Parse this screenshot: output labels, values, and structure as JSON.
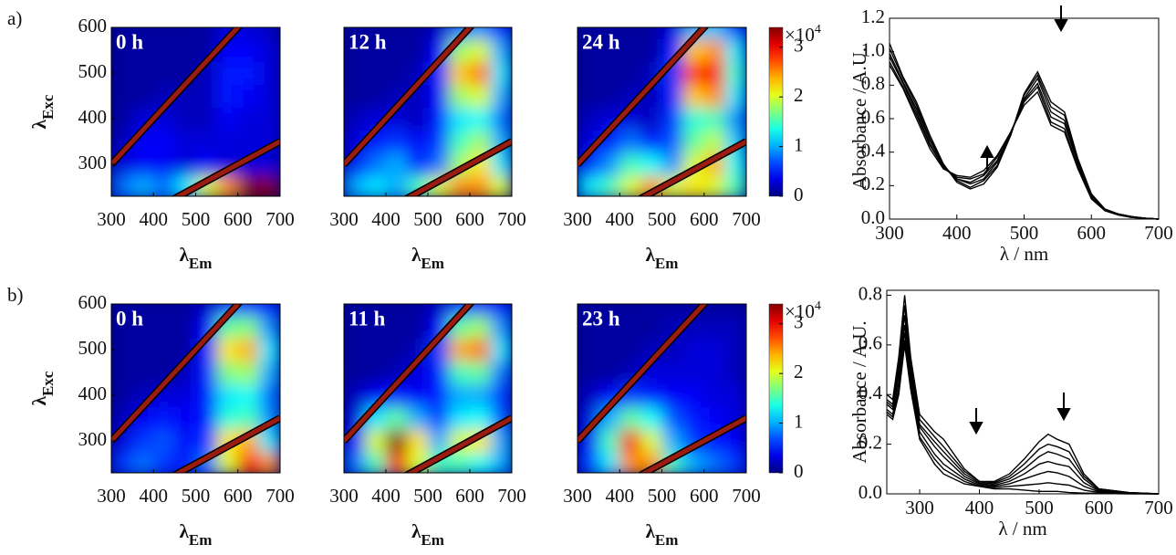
{
  "chart_data": [
    {
      "type": "contour",
      "panel_label": "a)",
      "time_label": "0 h",
      "xlabel": "λ",
      "xlabel_sub": "Em",
      "ylabel": "λ",
      "ylabel_sub": "Exc",
      "xlim": [
        300,
        700
      ],
      "ylim": [
        230,
        600
      ],
      "xticks": [
        300,
        400,
        500,
        600,
        700
      ],
      "yticks": [
        300,
        400,
        500,
        600
      ],
      "x": [
        325,
        375,
        425,
        475,
        525,
        575,
        625,
        675
      ],
      "y": [
        250,
        300,
        350,
        400,
        450,
        500,
        550,
        600
      ],
      "zlim": [
        0,
        3.4
      ],
      "z": [
        [
          0.8,
          1.0,
          0.8,
          1.2,
          2.0,
          2.5,
          3.4,
          3.4
        ],
        [
          0.3,
          0.4,
          0.4,
          0.3,
          0.4,
          0.3,
          0.3,
          0.3
        ],
        [
          0.2,
          0.4,
          0.4,
          0.3,
          0.3,
          0.3,
          0.3,
          0.3
        ],
        [
          0.1,
          0.3,
          0.3,
          0.2,
          0.2,
          0.4,
          0.3,
          0.3
        ],
        [
          0.1,
          0.1,
          0.2,
          0.2,
          0.2,
          0.5,
          0.4,
          0.3
        ],
        [
          0.1,
          0.1,
          0.1,
          0.1,
          0.2,
          0.5,
          0.5,
          0.3
        ],
        [
          0.1,
          0.1,
          0.1,
          0.1,
          0.1,
          0.4,
          0.4,
          0.3
        ],
        [
          0.1,
          0.1,
          0.1,
          0.1,
          0.1,
          0.3,
          0.3,
          0.2
        ]
      ]
    },
    {
      "type": "contour",
      "time_label": "12 h",
      "xlabel": "λ",
      "xlabel_sub": "Em",
      "xlim": [
        300,
        700
      ],
      "ylim": [
        230,
        600
      ],
      "xticks": [
        300,
        400,
        500,
        600,
        700
      ],
      "x": [
        325,
        375,
        425,
        475,
        525,
        575,
        625,
        675
      ],
      "y": [
        250,
        300,
        350,
        400,
        450,
        500,
        550,
        600
      ],
      "zlim": [
        0,
        3.4
      ],
      "z": [
        [
          1.0,
          1.2,
          1.0,
          1.5,
          2.0,
          2.5,
          2.5,
          2.0
        ],
        [
          0.4,
          0.8,
          1.0,
          0.5,
          0.8,
          1.8,
          2.2,
          1.2
        ],
        [
          0.3,
          0.5,
          0.6,
          0.4,
          0.6,
          1.5,
          1.8,
          1.0
        ],
        [
          0.2,
          0.3,
          0.3,
          0.2,
          0.5,
          1.2,
          1.3,
          0.8
        ],
        [
          0.1,
          0.1,
          0.2,
          0.2,
          0.4,
          1.8,
          2.0,
          1.0
        ],
        [
          0.1,
          0.1,
          0.1,
          0.2,
          0.5,
          2.3,
          2.6,
          1.2
        ],
        [
          0.1,
          0.1,
          0.1,
          0.1,
          0.4,
          1.8,
          2.0,
          1.0
        ],
        [
          0.1,
          0.1,
          0.1,
          0.1,
          0.2,
          0.8,
          0.9,
          0.5
        ]
      ]
    },
    {
      "type": "contour",
      "time_label": "24 h",
      "xlabel": "λ",
      "xlabel_sub": "Em",
      "xlim": [
        300,
        700
      ],
      "ylim": [
        230,
        600
      ],
      "xticks": [
        300,
        400,
        500,
        600,
        700
      ],
      "x": [
        325,
        375,
        425,
        475,
        525,
        575,
        625,
        675
      ],
      "y": [
        250,
        300,
        350,
        400,
        450,
        500,
        550,
        600
      ],
      "zlim": [
        0,
        3.4
      ],
      "z": [
        [
          1.2,
          1.5,
          2.0,
          2.5,
          2.0,
          2.2,
          2.0,
          1.5
        ],
        [
          0.5,
          0.9,
          1.5,
          1.3,
          0.9,
          2.0,
          2.4,
          1.3
        ],
        [
          0.3,
          0.5,
          0.8,
          0.5,
          0.7,
          1.6,
          1.9,
          1.1
        ],
        [
          0.2,
          0.3,
          0.3,
          0.2,
          0.6,
          1.4,
          1.5,
          0.9
        ],
        [
          0.1,
          0.1,
          0.2,
          0.2,
          0.5,
          2.3,
          2.5,
          1.2
        ],
        [
          0.1,
          0.1,
          0.1,
          0.2,
          0.6,
          2.8,
          3.0,
          1.4
        ],
        [
          0.1,
          0.1,
          0.1,
          0.1,
          0.5,
          2.3,
          2.5,
          1.2
        ],
        [
          0.1,
          0.1,
          0.1,
          0.1,
          0.3,
          1.0,
          1.1,
          0.6
        ]
      ],
      "colorbar_ticks": [
        0,
        1,
        2,
        3
      ],
      "colorbar_label": "×10",
      "colorbar_label_sup": "4"
    },
    {
      "type": "line",
      "xlabel": "λ / nm",
      "ylabel": "Absorbance / A.U.",
      "color": "#000000",
      "xlim": [
        300,
        700
      ],
      "ylim": [
        0,
        1.2
      ],
      "xticks": [
        300,
        400,
        500,
        600,
        700
      ],
      "yticks": [
        {
          "value": 0,
          "label": "0.0"
        },
        0.2,
        0.4,
        0.6,
        0.8,
        {
          "value": 1,
          "label": "1.0"
        },
        1.2
      ],
      "x": [
        300,
        320,
        340,
        360,
        380,
        400,
        420,
        440,
        460,
        480,
        500,
        520,
        540,
        560,
        580,
        600,
        620,
        640,
        660,
        680,
        700
      ],
      "series": [
        {
          "values": [
            1.05,
            0.85,
            0.7,
            0.5,
            0.33,
            0.22,
            0.18,
            0.21,
            0.31,
            0.5,
            0.75,
            0.88,
            0.7,
            0.64,
            0.36,
            0.15,
            0.06,
            0.03,
            0.015,
            0.005,
            0
          ]
        },
        {
          "values": [
            1.02,
            0.84,
            0.68,
            0.48,
            0.32,
            0.23,
            0.19,
            0.23,
            0.32,
            0.5,
            0.74,
            0.86,
            0.67,
            0.62,
            0.35,
            0.14,
            0.06,
            0.03,
            0.015,
            0.005,
            0
          ]
        },
        {
          "values": [
            0.99,
            0.82,
            0.66,
            0.47,
            0.32,
            0.24,
            0.21,
            0.24,
            0.34,
            0.51,
            0.72,
            0.84,
            0.64,
            0.59,
            0.34,
            0.14,
            0.06,
            0.03,
            0.015,
            0.005,
            0
          ]
        },
        {
          "values": [
            0.97,
            0.81,
            0.64,
            0.45,
            0.31,
            0.24,
            0.22,
            0.26,
            0.35,
            0.51,
            0.71,
            0.81,
            0.61,
            0.57,
            0.33,
            0.13,
            0.05,
            0.025,
            0.01,
            0.005,
            0
          ]
        },
        {
          "values": [
            0.94,
            0.79,
            0.62,
            0.44,
            0.31,
            0.25,
            0.24,
            0.27,
            0.37,
            0.52,
            0.7,
            0.79,
            0.58,
            0.54,
            0.31,
            0.13,
            0.05,
            0.025,
            0.01,
            0.005,
            0
          ]
        },
        {
          "values": [
            0.92,
            0.78,
            0.6,
            0.42,
            0.3,
            0.26,
            0.25,
            0.29,
            0.38,
            0.52,
            0.68,
            0.76,
            0.56,
            0.52,
            0.3,
            0.12,
            0.05,
            0.025,
            0.01,
            0.005,
            0
          ]
        }
      ]
    },
    {
      "type": "contour",
      "panel_label": "b)",
      "time_label": "0 h",
      "xlabel": "λ",
      "xlabel_sub": "Em",
      "ylabel": "λ",
      "ylabel_sub": "Exc",
      "xlim": [
        300,
        700
      ],
      "ylim": [
        230,
        600
      ],
      "xticks": [
        300,
        400,
        500,
        600,
        700
      ],
      "yticks": [
        300,
        400,
        500,
        600
      ],
      "x": [
        325,
        375,
        425,
        475,
        525,
        575,
        625,
        675
      ],
      "y": [
        250,
        300,
        350,
        400,
        450,
        500,
        550,
        600
      ],
      "zlim": [
        0,
        3.4
      ],
      "z": [
        [
          0.6,
          0.8,
          0.6,
          0.5,
          0.8,
          2.0,
          3.0,
          2.5
        ],
        [
          0.3,
          0.6,
          0.7,
          0.4,
          0.6,
          2.2,
          2.4,
          1.2
        ],
        [
          0.2,
          0.4,
          0.5,
          0.4,
          0.5,
          1.4,
          1.5,
          0.9
        ],
        [
          0.1,
          0.2,
          0.3,
          0.3,
          0.5,
          1.2,
          1.3,
          0.8
        ],
        [
          0.1,
          0.1,
          0.1,
          0.2,
          0.5,
          1.7,
          1.8,
          1.0
        ],
        [
          0.1,
          0.1,
          0.1,
          0.1,
          0.5,
          2.2,
          2.4,
          1.2
        ],
        [
          0.1,
          0.1,
          0.1,
          0.1,
          0.4,
          1.6,
          1.7,
          0.9
        ],
        [
          0.1,
          0.1,
          0.1,
          0.1,
          0.2,
          0.6,
          0.6,
          0.4
        ]
      ]
    },
    {
      "type": "contour",
      "time_label": "11 h",
      "xlabel": "λ",
      "xlabel_sub": "Em",
      "xlim": [
        300,
        700
      ],
      "ylim": [
        230,
        600
      ],
      "xticks": [
        300,
        400,
        500,
        600,
        700
      ],
      "x": [
        325,
        375,
        425,
        475,
        525,
        575,
        625,
        675
      ],
      "y": [
        250,
        300,
        350,
        400,
        450,
        500,
        550,
        600
      ],
      "zlim": [
        0,
        3.4
      ],
      "z": [
        [
          0.8,
          1.5,
          3.0,
          2.0,
          1.5,
          1.5,
          1.3,
          1.0
        ],
        [
          0.5,
          2.0,
          3.4,
          2.2,
          1.0,
          2.0,
          2.2,
          1.0
        ],
        [
          0.3,
          1.2,
          1.6,
          1.0,
          0.6,
          1.2,
          1.3,
          0.7
        ],
        [
          0.2,
          0.4,
          0.5,
          0.4,
          0.5,
          1.0,
          1.0,
          0.6
        ],
        [
          0.1,
          0.1,
          0.2,
          0.3,
          0.5,
          1.5,
          1.6,
          0.8
        ],
        [
          0.1,
          0.1,
          0.1,
          0.2,
          0.6,
          2.4,
          2.6,
          1.2
        ],
        [
          0.1,
          0.1,
          0.1,
          0.1,
          0.4,
          1.6,
          1.8,
          0.9
        ],
        [
          0.1,
          0.1,
          0.1,
          0.1,
          0.2,
          0.6,
          0.6,
          0.4
        ]
      ]
    },
    {
      "type": "contour",
      "time_label": "23 h",
      "xlabel": "λ",
      "xlabel_sub": "Em",
      "xlim": [
        300,
        700
      ],
      "ylim": [
        230,
        600
      ],
      "xticks": [
        300,
        400,
        500,
        600,
        700
      ],
      "x": [
        325,
        375,
        425,
        475,
        525,
        575,
        625,
        675
      ],
      "y": [
        250,
        300,
        350,
        400,
        450,
        500,
        550,
        600
      ],
      "zlim": [
        0,
        3.4
      ],
      "z": [
        [
          0.6,
          1.2,
          2.5,
          2.5,
          1.5,
          1.0,
          0.8,
          0.6
        ],
        [
          0.4,
          1.5,
          3.0,
          2.0,
          1.0,
          0.6,
          0.5,
          0.4
        ],
        [
          0.3,
          1.0,
          1.6,
          1.3,
          0.7,
          0.5,
          0.4,
          0.3
        ],
        [
          0.2,
          0.4,
          0.6,
          0.5,
          0.4,
          0.4,
          0.3,
          0.3
        ],
        [
          0.1,
          0.1,
          0.2,
          0.3,
          0.3,
          0.3,
          0.3,
          0.2
        ],
        [
          0.1,
          0.1,
          0.1,
          0.2,
          0.2,
          0.3,
          0.3,
          0.2
        ],
        [
          0.1,
          0.1,
          0.1,
          0.1,
          0.2,
          0.2,
          0.2,
          0.2
        ],
        [
          0.1,
          0.1,
          0.1,
          0.1,
          0.1,
          0.1,
          0.1,
          0.1
        ]
      ],
      "colorbar_ticks": [
        0,
        1,
        2,
        3
      ],
      "colorbar_label": "×10",
      "colorbar_label_sup": "4"
    },
    {
      "type": "line",
      "xlabel": "λ / nm",
      "ylabel": "Absorbance / A.U.",
      "color": "#000000",
      "xlim": [
        245,
        700
      ],
      "ylim": [
        0,
        0.82
      ],
      "xticks": [
        300,
        400,
        500,
        600,
        700
      ],
      "yticks": [
        {
          "value": 0,
          "label": "0.0"
        },
        0.2,
        0.4,
        0.6,
        0.8
      ],
      "x": [
        245,
        255,
        265,
        275,
        285,
        300,
        325,
        340,
        375,
        400,
        425,
        450,
        475,
        500,
        515,
        530,
        550,
        575,
        600,
        650,
        700
      ],
      "series": [
        {
          "values": [
            0.4,
            0.38,
            0.55,
            0.8,
            0.55,
            0.32,
            0.25,
            0.22,
            0.1,
            0.05,
            0.05,
            0.08,
            0.14,
            0.21,
            0.24,
            0.22,
            0.2,
            0.08,
            0.02,
            0.005,
            0
          ]
        },
        {
          "values": [
            0.38,
            0.36,
            0.52,
            0.76,
            0.52,
            0.3,
            0.23,
            0.19,
            0.09,
            0.05,
            0.045,
            0.07,
            0.12,
            0.18,
            0.2,
            0.19,
            0.17,
            0.07,
            0.02,
            0.005,
            0
          ]
        },
        {
          "values": [
            0.37,
            0.35,
            0.5,
            0.72,
            0.5,
            0.28,
            0.21,
            0.17,
            0.08,
            0.045,
            0.04,
            0.06,
            0.1,
            0.15,
            0.17,
            0.16,
            0.14,
            0.06,
            0.015,
            0.004,
            0
          ]
        },
        {
          "values": [
            0.36,
            0.34,
            0.48,
            0.68,
            0.48,
            0.27,
            0.19,
            0.15,
            0.07,
            0.04,
            0.035,
            0.05,
            0.08,
            0.12,
            0.13,
            0.12,
            0.11,
            0.045,
            0.012,
            0.003,
            0
          ]
        },
        {
          "values": [
            0.34,
            0.32,
            0.45,
            0.65,
            0.46,
            0.25,
            0.16,
            0.12,
            0.06,
            0.035,
            0.03,
            0.04,
            0.06,
            0.08,
            0.09,
            0.085,
            0.07,
            0.03,
            0.008,
            0.002,
            0
          ]
        },
        {
          "values": [
            0.33,
            0.31,
            0.42,
            0.62,
            0.44,
            0.23,
            0.14,
            0.1,
            0.05,
            0.03,
            0.025,
            0.03,
            0.035,
            0.04,
            0.045,
            0.04,
            0.035,
            0.015,
            0.005,
            0.001,
            0
          ]
        },
        {
          "values": [
            0.32,
            0.3,
            0.4,
            0.6,
            0.42,
            0.22,
            0.12,
            0.08,
            0.04,
            0.03,
            0.02,
            0.02,
            0.015,
            0.01,
            0.01,
            0.01,
            0.005,
            0.003,
            0.002,
            0,
            0
          ]
        }
      ]
    }
  ]
}
